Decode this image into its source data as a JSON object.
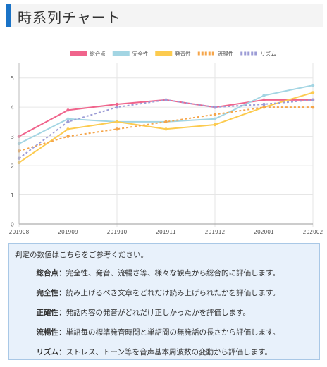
{
  "header": {
    "title": "時系列チャート"
  },
  "chart_data": {
    "type": "line",
    "categories": [
      "201908",
      "201909",
      "201910",
      "201911",
      "201912",
      "202001",
      "202002"
    ],
    "y_ticks": [
      "0",
      "1",
      "2",
      "3",
      "4",
      "5"
    ],
    "ylim": [
      0,
      5.5
    ],
    "grid": true,
    "legend_position": "top",
    "series": [
      {
        "name": "総合点",
        "color": "#f0648c",
        "dashed": false,
        "values": [
          3.0,
          3.9,
          4.1,
          4.25,
          4.0,
          4.25,
          4.25
        ]
      },
      {
        "name": "完全性",
        "color": "#a3d5e3",
        "dashed": false,
        "values": [
          2.75,
          3.6,
          3.5,
          3.5,
          3.6,
          4.4,
          4.75
        ]
      },
      {
        "name": "発音性",
        "color": "#fccb4f",
        "dashed": false,
        "values": [
          2.1,
          3.25,
          3.5,
          3.25,
          3.4,
          4.0,
          4.5
        ]
      },
      {
        "name": "流暢性",
        "color": "#f5a54a",
        "dashed": true,
        "values": [
          2.5,
          3.0,
          3.25,
          3.5,
          3.75,
          4.0,
          4.0
        ]
      },
      {
        "name": "リズム",
        "color": "#9c9cd6",
        "dashed": true,
        "values": [
          2.25,
          3.5,
          4.0,
          4.25,
          4.0,
          4.1,
          4.25
        ]
      }
    ]
  },
  "info": {
    "intro": "判定の数値はこちらをご参考ください。",
    "items": [
      {
        "term": "総合点",
        "desc": "：完全性、発音、流暢さ等、様々な観点から総合的に評価します。"
      },
      {
        "term": "完全性",
        "desc": "：読み上げるべき文章をどれだけ読み上げられたかを評価します。"
      },
      {
        "term": "正確性",
        "desc": "：発話内容の発音がどれだけ正しかったかを評価します。"
      },
      {
        "term": "流暢性",
        "desc": "：単語毎の標準発音時間と単語間の無発話の長さから評価します。"
      },
      {
        "term": "リズム",
        "desc": "：ストレス、トーン等を音声基本周波数の変動から評価します。"
      }
    ]
  }
}
